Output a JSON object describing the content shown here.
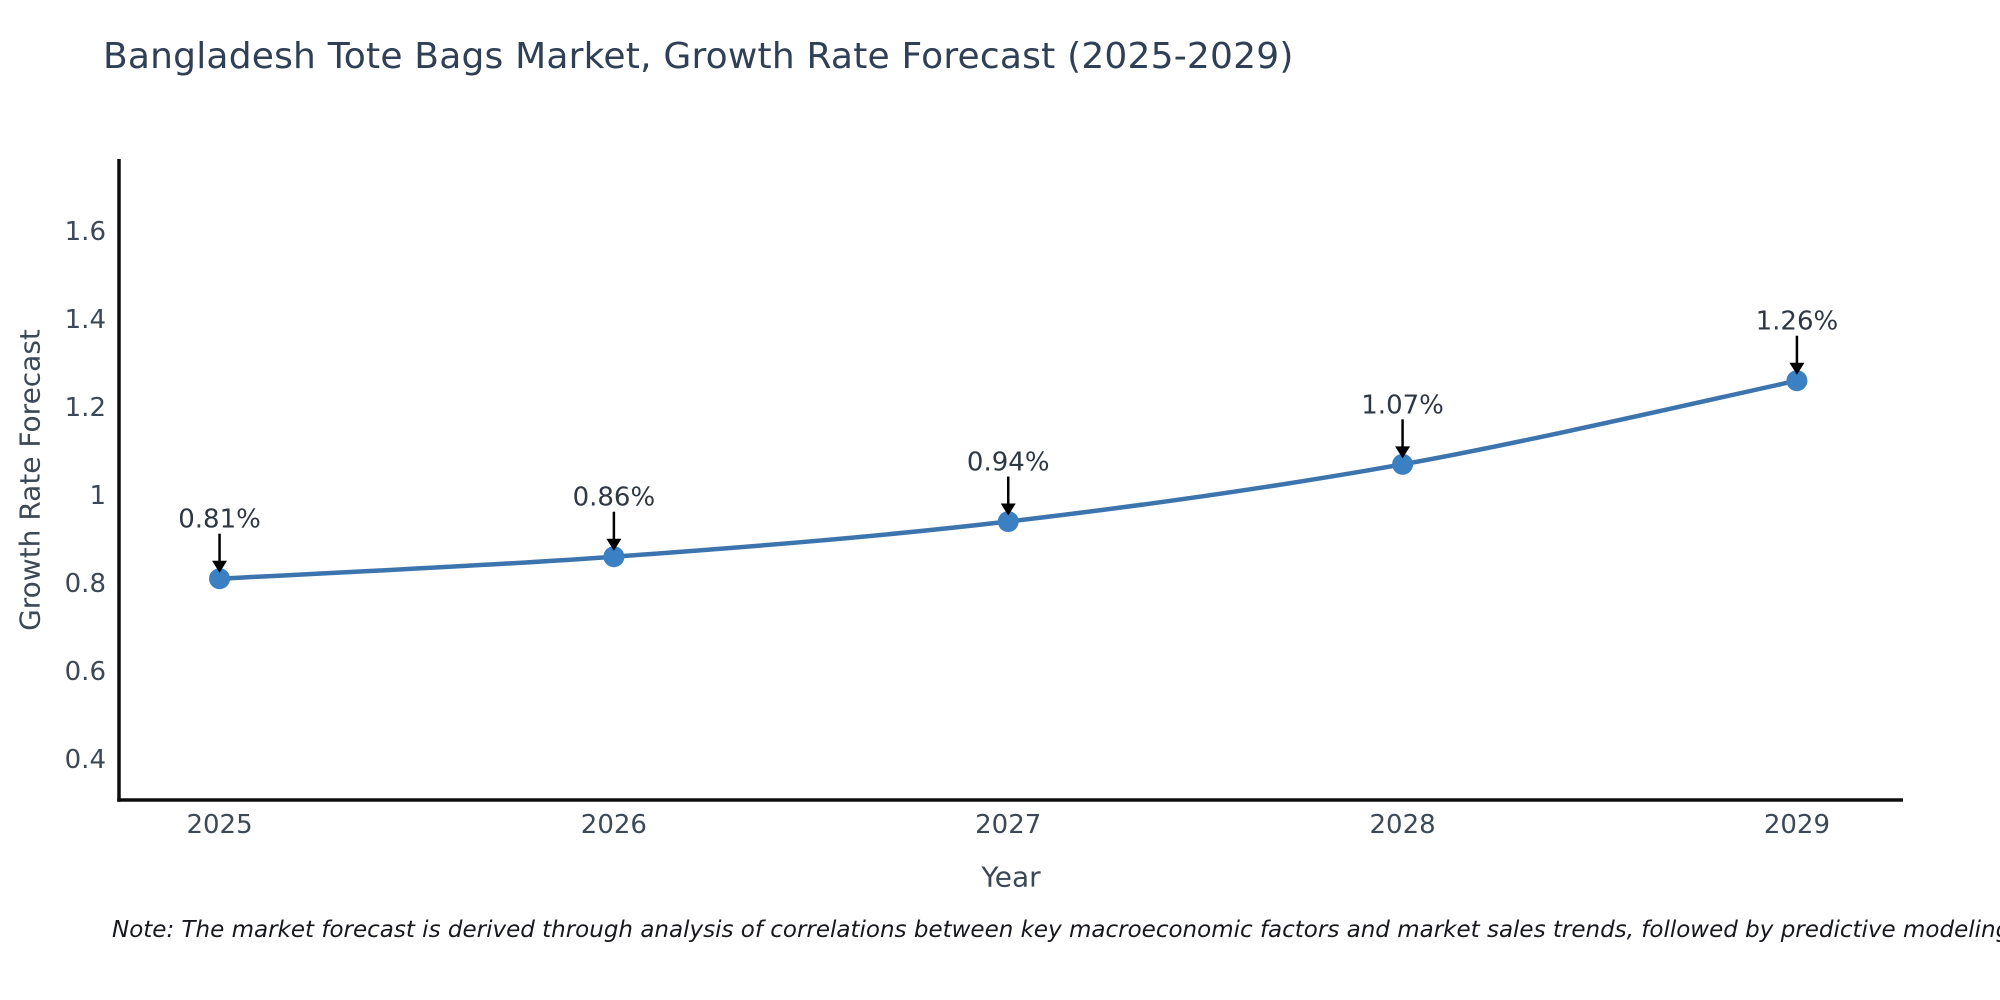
{
  "title": "Bangladesh Tote Bags Market, Growth Rate Forecast (2025-2029)",
  "note": "Note: The market forecast is derived through analysis of correlations between key macroeconomic factors and market sales trends, followed by predictive modeling to project future sales",
  "chart_data": {
    "type": "line",
    "title": "Bangladesh Tote Bags Market, Growth Rate Forecast (2025-2029)",
    "xlabel": "Year",
    "ylabel": "Growth Rate Forecast",
    "x": [
      2025,
      2026,
      2027,
      2028,
      2029
    ],
    "xtick_labels": [
      "2025",
      "2026",
      "2027",
      "2028",
      "2029"
    ],
    "values": [
      0.81,
      0.86,
      0.94,
      1.07,
      1.26
    ],
    "point_labels": [
      "0.81%",
      "0.86%",
      "0.94%",
      "1.07%",
      "1.26%"
    ],
    "yticks": [
      0.4,
      0.6,
      0.8,
      1.0,
      1.2,
      1.4,
      1.6
    ],
    "ytick_labels": [
      "0.4",
      "0.6",
      "0.8",
      "1",
      "1.2",
      "1.4",
      "1.6"
    ],
    "xlim": [
      2024.745,
      2029.269
    ],
    "ylim": [
      0.307,
      1.764
    ],
    "grid": false,
    "legend_position": "none",
    "annotation_style": "down-arrow",
    "colors": {
      "line": "#3c75ae",
      "marker": "#3b80c3",
      "arrow": "#000000",
      "spine": "#0e0e0e",
      "tick_label": "#3d4856",
      "annotation_text": "#2f3742",
      "title": "#2f4056"
    }
  }
}
